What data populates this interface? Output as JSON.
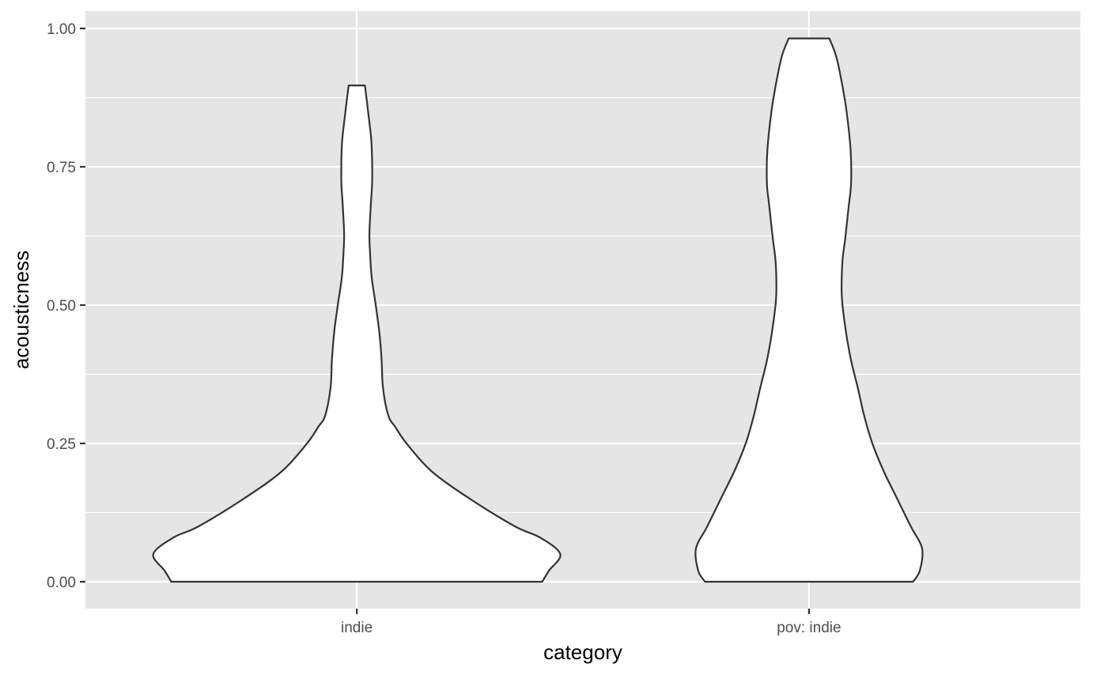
{
  "chart_data": {
    "type": "violin",
    "title": "",
    "xlabel": "category",
    "ylabel": "acousticness",
    "categories": [
      "indie",
      "pov: indie"
    ],
    "ylim": [
      -0.048,
      1.03
    ],
    "yticks": [
      0.0,
      0.25,
      0.5,
      0.75,
      1.0
    ],
    "ytick_labels": [
      "0.00",
      "0.25",
      "0.50",
      "0.75",
      "1.00"
    ],
    "grid": true,
    "legend": "none",
    "colors": {
      "panel": "#e5e5e5",
      "grid_major": "#ffffff",
      "violin_fill": "#ffffff",
      "violin_stroke": "#333333"
    },
    "series": [
      {
        "category": "indie",
        "y_min": 0.0,
        "y_max": 0.897,
        "density_width": [
          [
            0.0,
            0.41
          ],
          [
            0.02,
            0.425
          ],
          [
            0.05,
            0.45
          ],
          [
            0.08,
            0.405
          ],
          [
            0.1,
            0.35
          ],
          [
            0.15,
            0.25
          ],
          [
            0.2,
            0.165
          ],
          [
            0.25,
            0.11
          ],
          [
            0.28,
            0.085
          ],
          [
            0.3,
            0.07
          ],
          [
            0.35,
            0.058
          ],
          [
            0.4,
            0.055
          ],
          [
            0.45,
            0.05
          ],
          [
            0.5,
            0.042
          ],
          [
            0.55,
            0.033
          ],
          [
            0.6,
            0.029
          ],
          [
            0.63,
            0.028
          ],
          [
            0.68,
            0.031
          ],
          [
            0.72,
            0.034
          ],
          [
            0.76,
            0.034
          ],
          [
            0.8,
            0.032
          ],
          [
            0.85,
            0.025
          ],
          [
            0.897,
            0.018
          ]
        ]
      },
      {
        "category": "pov: indie",
        "y_min": 0.0,
        "y_max": 0.982,
        "density_width": [
          [
            0.0,
            0.23
          ],
          [
            0.02,
            0.245
          ],
          [
            0.06,
            0.25
          ],
          [
            0.1,
            0.225
          ],
          [
            0.15,
            0.195
          ],
          [
            0.2,
            0.165
          ],
          [
            0.25,
            0.14
          ],
          [
            0.3,
            0.122
          ],
          [
            0.35,
            0.108
          ],
          [
            0.4,
            0.093
          ],
          [
            0.45,
            0.082
          ],
          [
            0.5,
            0.074
          ],
          [
            0.53,
            0.072
          ],
          [
            0.58,
            0.074
          ],
          [
            0.62,
            0.08
          ],
          [
            0.68,
            0.088
          ],
          [
            0.72,
            0.093
          ],
          [
            0.78,
            0.092
          ],
          [
            0.85,
            0.083
          ],
          [
            0.9,
            0.073
          ],
          [
            0.95,
            0.06
          ],
          [
            0.982,
            0.045
          ]
        ]
      }
    ]
  }
}
